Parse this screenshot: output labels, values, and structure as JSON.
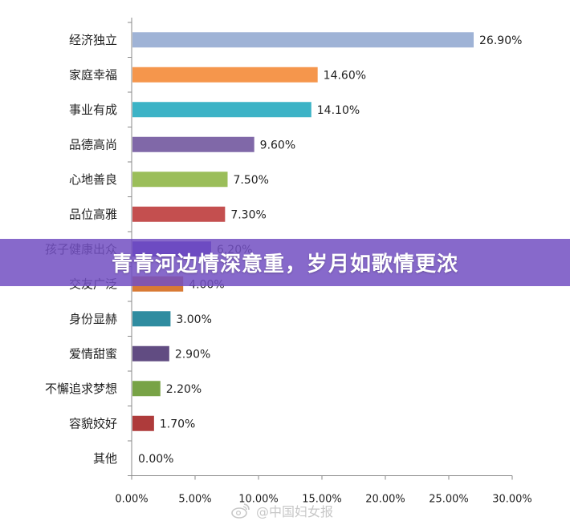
{
  "chart_data": {
    "type": "bar",
    "orientation": "horizontal",
    "categories": [
      "经济独立",
      "家庭幸福",
      "事业有成",
      "品德高尚",
      "心地善良",
      "品位高雅",
      "孩子健康出众",
      "交友广泛",
      "身份显赫",
      "爱情甜蜜",
      "不懈追求梦想",
      "容貌姣好",
      "其他"
    ],
    "values": [
      26.9,
      14.6,
      14.1,
      9.6,
      7.5,
      7.3,
      6.2,
      4.0,
      3.0,
      2.9,
      2.2,
      1.7,
      0.0
    ],
    "value_labels": [
      "26.90%",
      "14.60%",
      "14.10%",
      "9.60%",
      "7.50%",
      "7.30%",
      "6.20%",
      "4.00%",
      "3.00%",
      "2.90%",
      "2.20%",
      "1.70%",
      "0.00%"
    ],
    "colors": [
      "#9fb3d6",
      "#f5964c",
      "#3cb3c6",
      "#8068a8",
      "#9bbe5a",
      "#c44f4f",
      "#4a2fc0",
      "#d97a34",
      "#2f8ca0",
      "#614c82",
      "#78a346",
      "#ae3b3b",
      "#777777"
    ],
    "xlim": [
      0,
      30
    ],
    "x_ticks": [
      "0.00%",
      "5.00%",
      "10.00%",
      "15.00%",
      "20.00%",
      "25.00%",
      "30.00%"
    ],
    "grid": false,
    "legend": "none"
  },
  "overlay": {
    "banner_text": "青青河边情深意重，岁月如歌情更浓",
    "watermark_text": "@中国妇女报"
  }
}
